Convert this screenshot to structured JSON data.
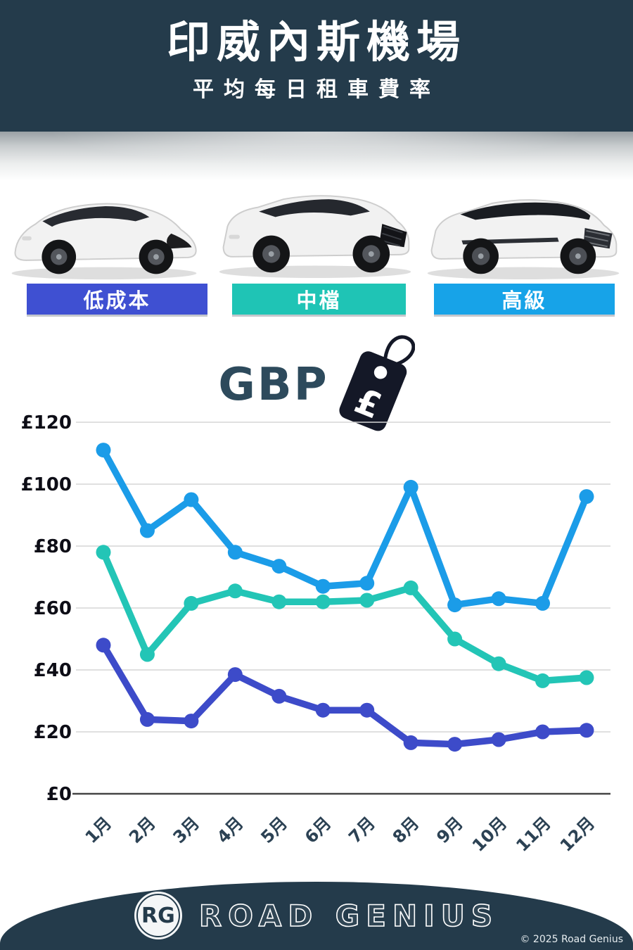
{
  "header": {
    "title": "印威內斯機場",
    "subtitle": "平均每日租車費率"
  },
  "categories": [
    {
      "key": "economy",
      "label": "低成本",
      "color": "#3f50d2"
    },
    {
      "key": "mid",
      "label": "中檔",
      "color": "#1fc4b5"
    },
    {
      "key": "premium",
      "label": "高級",
      "color": "#17a3e8"
    }
  ],
  "currency": {
    "label": "GBP",
    "symbol": "£"
  },
  "chart_data": {
    "type": "line",
    "title": "印威內斯機場 平均每日租車費率 (GBP)",
    "categories": [
      "1月",
      "2月",
      "3月",
      "4月",
      "5月",
      "6月",
      "7月",
      "8月",
      "9月",
      "10月",
      "11月",
      "12月"
    ],
    "series": [
      {
        "key": "premium",
        "name": "高級",
        "color": "#1b9ce8",
        "values": [
          111,
          85,
          95,
          78,
          73.5,
          67,
          68,
          99,
          61,
          63,
          61.5,
          96
        ]
      },
      {
        "key": "mid",
        "name": "中檔",
        "color": "#23c5b6",
        "values": [
          78,
          45,
          61.5,
          65.5,
          62,
          62,
          62.5,
          66.5,
          50,
          42,
          36.5,
          37.5
        ]
      },
      {
        "key": "economy",
        "name": "低成本",
        "color": "#3d4bc9",
        "values": [
          48,
          24,
          23.5,
          38.5,
          31.5,
          27,
          27,
          16.5,
          16,
          17.5,
          20,
          20.5
        ]
      }
    ],
    "ylabel_prefix": "£",
    "yticks": [
      0,
      20,
      40,
      60,
      80,
      100,
      120
    ],
    "ylim": [
      0,
      120
    ],
    "grid": true,
    "xlabel": "",
    "ylabel": "",
    "legend_position": "category-badges-above"
  },
  "footer": {
    "logo_initials": "RG",
    "brand": "ROAD GENIUS",
    "copyright": "© 2025 Road Genius"
  }
}
